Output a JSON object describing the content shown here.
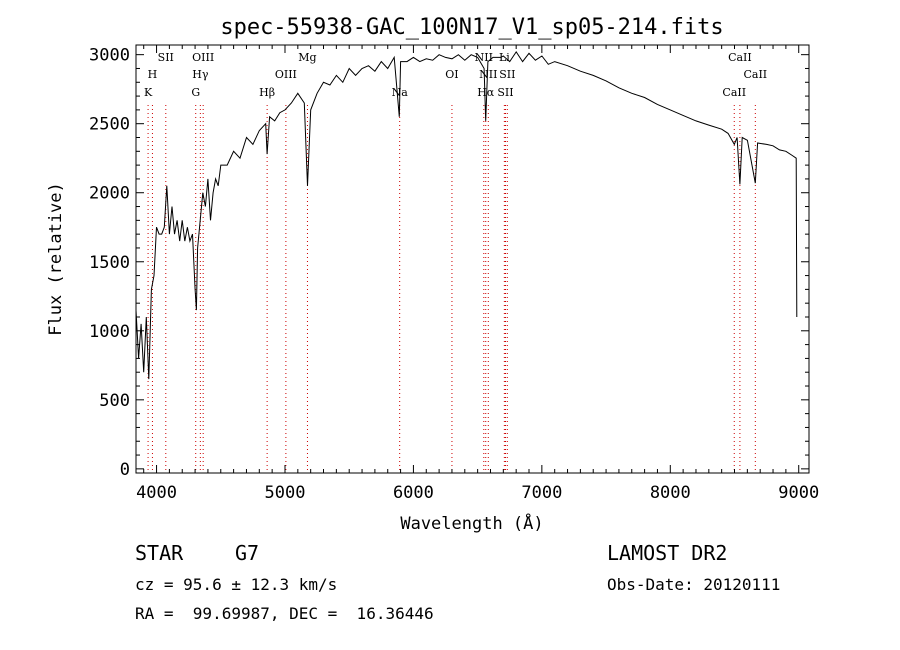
{
  "chart_data": {
    "type": "line",
    "title": "spec-55938-GAC_100N17_V1_sp05-214.fits",
    "xlabel": "Wavelength (Å)",
    "ylabel": "Flux (relative)",
    "xlim": [
      3840,
      9080
    ],
    "ylim": [
      -30,
      3070
    ],
    "xticks": [
      4000,
      5000,
      6000,
      7000,
      8000,
      9000
    ],
    "yticks": [
      0,
      500,
      1000,
      1500,
      2000,
      2500,
      3000
    ],
    "grid": false,
    "series": [
      {
        "points": [
          [
            3840,
            1150
          ],
          [
            3860,
            800
          ],
          [
            3880,
            1050
          ],
          [
            3900,
            700
          ],
          [
            3920,
            1100
          ],
          [
            3940,
            650
          ],
          [
            3960,
            1300
          ],
          [
            3980,
            1400
          ],
          [
            4000,
            1750
          ],
          [
            4020,
            1700
          ],
          [
            4040,
            1700
          ],
          [
            4060,
            1750
          ],
          [
            4080,
            2050
          ],
          [
            4100,
            1700
          ],
          [
            4120,
            1900
          ],
          [
            4140,
            1700
          ],
          [
            4160,
            1800
          ],
          [
            4180,
            1650
          ],
          [
            4200,
            1800
          ],
          [
            4220,
            1650
          ],
          [
            4240,
            1750
          ],
          [
            4260,
            1650
          ],
          [
            4280,
            1700
          ],
          [
            4300,
            1300
          ],
          [
            4310,
            1150
          ],
          [
            4320,
            1600
          ],
          [
            4340,
            1800
          ],
          [
            4360,
            2000
          ],
          [
            4380,
            1900
          ],
          [
            4400,
            2100
          ],
          [
            4420,
            1800
          ],
          [
            4440,
            2000
          ],
          [
            4460,
            2100
          ],
          [
            4480,
            2050
          ],
          [
            4500,
            2200
          ],
          [
            4550,
            2200
          ],
          [
            4600,
            2300
          ],
          [
            4650,
            2250
          ],
          [
            4700,
            2400
          ],
          [
            4750,
            2350
          ],
          [
            4800,
            2450
          ],
          [
            4850,
            2500
          ],
          [
            4861,
            2280
          ],
          [
            4880,
            2550
          ],
          [
            4920,
            2520
          ],
          [
            4960,
            2580
          ],
          [
            5000,
            2600
          ],
          [
            5050,
            2650
          ],
          [
            5100,
            2720
          ],
          [
            5150,
            2650
          ],
          [
            5175,
            2050
          ],
          [
            5200,
            2600
          ],
          [
            5250,
            2720
          ],
          [
            5300,
            2800
          ],
          [
            5350,
            2780
          ],
          [
            5400,
            2850
          ],
          [
            5450,
            2800
          ],
          [
            5500,
            2900
          ],
          [
            5550,
            2850
          ],
          [
            5600,
            2900
          ],
          [
            5650,
            2920
          ],
          [
            5700,
            2880
          ],
          [
            5750,
            2950
          ],
          [
            5800,
            2900
          ],
          [
            5850,
            2980
          ],
          [
            5890,
            2550
          ],
          [
            5900,
            2950
          ],
          [
            5950,
            2950
          ],
          [
            6000,
            2980
          ],
          [
            6050,
            2950
          ],
          [
            6100,
            2970
          ],
          [
            6150,
            2960
          ],
          [
            6200,
            3000
          ],
          [
            6250,
            2980
          ],
          [
            6300,
            2970
          ],
          [
            6350,
            3000
          ],
          [
            6400,
            2960
          ],
          [
            6450,
            3000
          ],
          [
            6500,
            2980
          ],
          [
            6550,
            2900
          ],
          [
            6563,
            2520
          ],
          [
            6580,
            2950
          ],
          [
            6620,
            2980
          ],
          [
            6680,
            2980
          ],
          [
            6700,
            2990
          ],
          [
            6750,
            2950
          ],
          [
            6800,
            3020
          ],
          [
            6850,
            2950
          ],
          [
            6900,
            3010
          ],
          [
            6950,
            2960
          ],
          [
            7000,
            2990
          ],
          [
            7050,
            2930
          ],
          [
            7100,
            2950
          ],
          [
            7200,
            2920
          ],
          [
            7300,
            2880
          ],
          [
            7400,
            2850
          ],
          [
            7500,
            2810
          ],
          [
            7600,
            2760
          ],
          [
            7700,
            2720
          ],
          [
            7800,
            2690
          ],
          [
            7900,
            2640
          ],
          [
            8000,
            2600
          ],
          [
            8100,
            2560
          ],
          [
            8200,
            2520
          ],
          [
            8300,
            2490
          ],
          [
            8400,
            2460
          ],
          [
            8450,
            2430
          ],
          [
            8498,
            2350
          ],
          [
            8520,
            2400
          ],
          [
            8542,
            2060
          ],
          [
            8560,
            2400
          ],
          [
            8600,
            2380
          ],
          [
            8662,
            2070
          ],
          [
            8680,
            2360
          ],
          [
            8750,
            2350
          ],
          [
            8800,
            2340
          ],
          [
            8850,
            2310
          ],
          [
            8900,
            2300
          ],
          [
            8950,
            2270
          ],
          [
            8980,
            2250
          ],
          [
            8985,
            1100
          ]
        ]
      }
    ],
    "line_markers": [
      {
        "label": "K",
        "wavelength": 3934,
        "row": 2
      },
      {
        "label": "H",
        "wavelength": 3968,
        "row": 1
      },
      {
        "label": "SII",
        "wavelength": 4072,
        "row": 0
      },
      {
        "label": "G",
        "wavelength": 4305,
        "row": 2
      },
      {
        "label": "Hγ",
        "wavelength": 4341,
        "row": 1
      },
      {
        "label": "OIII",
        "wavelength": 4363,
        "row": 0
      },
      {
        "label": "Hβ",
        "wavelength": 4861,
        "row": 2
      },
      {
        "label": "OIII",
        "wavelength": 5007,
        "row": 1
      },
      {
        "label": "Mg",
        "wavelength": 5175,
        "row": 0
      },
      {
        "label": "Na",
        "wavelength": 5893,
        "row": 2
      },
      {
        "label": "OI",
        "wavelength": 6300,
        "row": 1
      },
      {
        "label": "NII",
        "wavelength": 6548,
        "row": 0
      },
      {
        "label": "Hα",
        "wavelength": 6563,
        "row": 2
      },
      {
        "label": "NII",
        "wavelength": 6583,
        "row": 1
      },
      {
        "label": "Li",
        "wavelength": 6708,
        "row": 0
      },
      {
        "label": "SII",
        "wavelength": 6717,
        "row": 2
      },
      {
        "label": "SII",
        "wavelength": 6731,
        "row": 1
      },
      {
        "label": "CaII",
        "wavelength": 8498,
        "row": 2
      },
      {
        "label": "CaII",
        "wavelength": 8542,
        "row": 0
      },
      {
        "label": "CaII",
        "wavelength": 8662,
        "row": 1
      }
    ],
    "marker_color": "#cc0000"
  },
  "info": {
    "object_class": "STAR",
    "subclass": "G7",
    "survey": "LAMOST DR2",
    "redshift": "cz = 95.6 ± 12.3 km/s",
    "obs_date": "Obs-Date: 20120111",
    "coords": "RA =  99.69987, DEC =  16.36446"
  }
}
